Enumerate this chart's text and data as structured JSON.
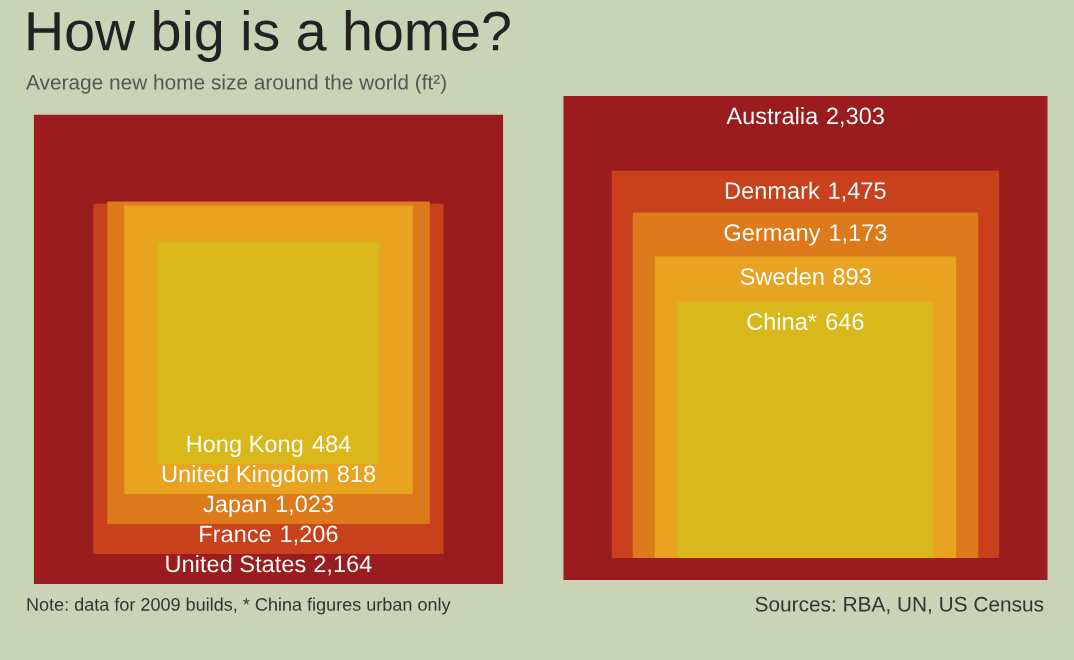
{
  "chart_data": [
    {
      "type": "other",
      "title": "How big is a home?",
      "subtitle": "Average new home size around the world (ft²)",
      "categories": [
        "United States",
        "France",
        "Japan",
        "United Kingdom",
        "Hong Kong"
      ],
      "values": [
        2164,
        1206,
        1023,
        818,
        484
      ],
      "colors": [
        "#9b1c1f",
        "#c8401c",
        "#dc7a1c",
        "#e8a320",
        "#d9b81c"
      ],
      "value_labels": [
        "2,164",
        "1,206",
        "1,023",
        "818",
        "484"
      ],
      "annotations": [
        "Note: data for 2009 builds, * China figures urban only"
      ]
    },
    {
      "type": "other",
      "categories": [
        "Australia",
        "Denmark",
        "Germany",
        "Sweden",
        "China*"
      ],
      "values": [
        2303,
        1475,
        1173,
        893,
        646
      ],
      "colors": [
        "#9b1c1f",
        "#c8401c",
        "#dc7a1c",
        "#e8a320",
        "#d9b81c"
      ],
      "value_labels": [
        "2,303",
        "1,475",
        "1,173",
        "893",
        "646"
      ],
      "annotations": [
        "Sources: RBA, UN, US Census"
      ]
    }
  ]
}
